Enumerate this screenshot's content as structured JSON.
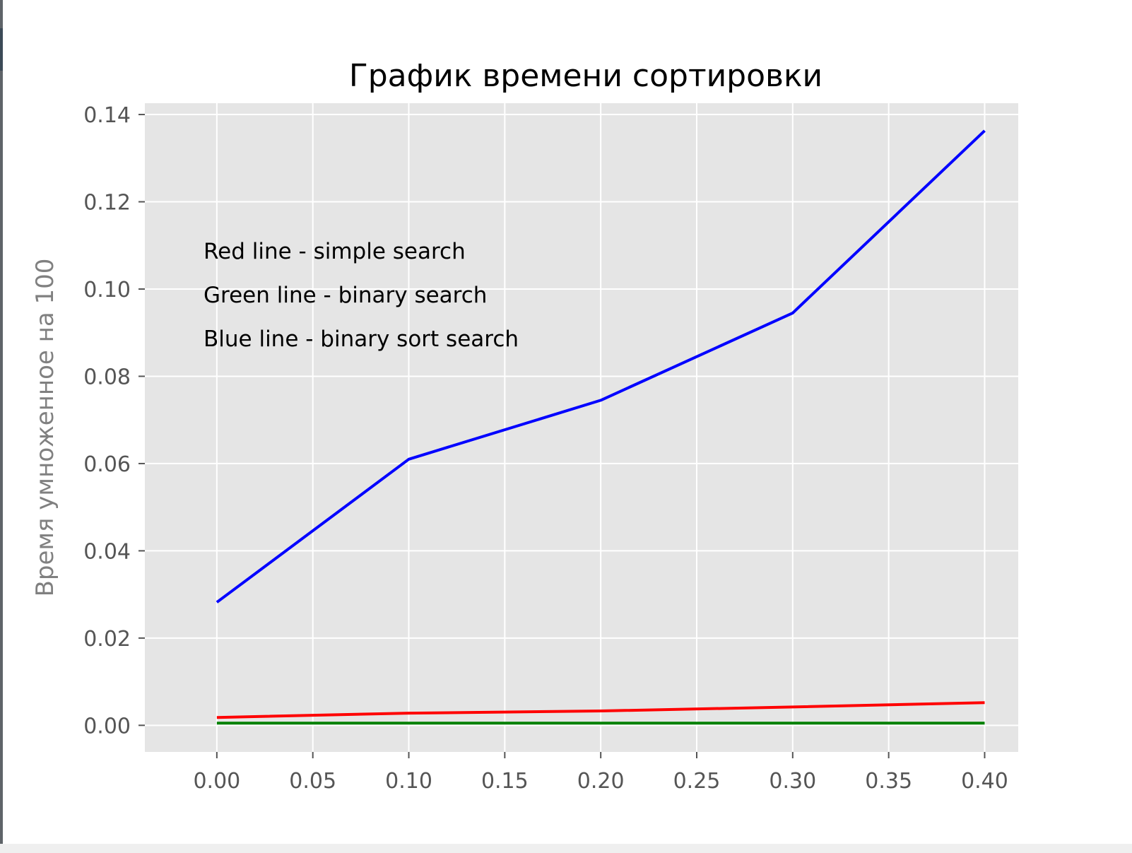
{
  "chart_data": {
    "type": "line",
    "title": "График времени сортировки",
    "xlabel": "",
    "ylabel": "Время умноженное на 100",
    "xlim": [
      -0.0375,
      0.4175
    ],
    "ylim": [
      -0.0061,
      0.1426
    ],
    "xticks": [
      "0.00",
      "0.05",
      "0.10",
      "0.15",
      "0.20",
      "0.25",
      "0.30",
      "0.35",
      "0.40"
    ],
    "yticks": [
      "0.00",
      "0.02",
      "0.04",
      "0.06",
      "0.08",
      "0.10",
      "0.12",
      "0.14"
    ],
    "grid": true,
    "x": [
      0.0,
      0.1,
      0.2,
      0.3,
      0.4
    ],
    "series": [
      {
        "color": "#ff0000",
        "values": [
          0.0018,
          0.0028,
          0.0033,
          0.0042,
          0.0052
        ]
      },
      {
        "color": "#008000",
        "values": [
          0.0005,
          0.0005,
          0.0005,
          0.0005,
          0.0005
        ]
      },
      {
        "color": "#0000ff",
        "values": [
          0.0282,
          0.061,
          0.0745,
          0.0945,
          0.1363
        ]
      }
    ],
    "annotations": [
      "Red line - simple search",
      "Green line - binary search",
      "Blue line - binary sort search"
    ]
  }
}
